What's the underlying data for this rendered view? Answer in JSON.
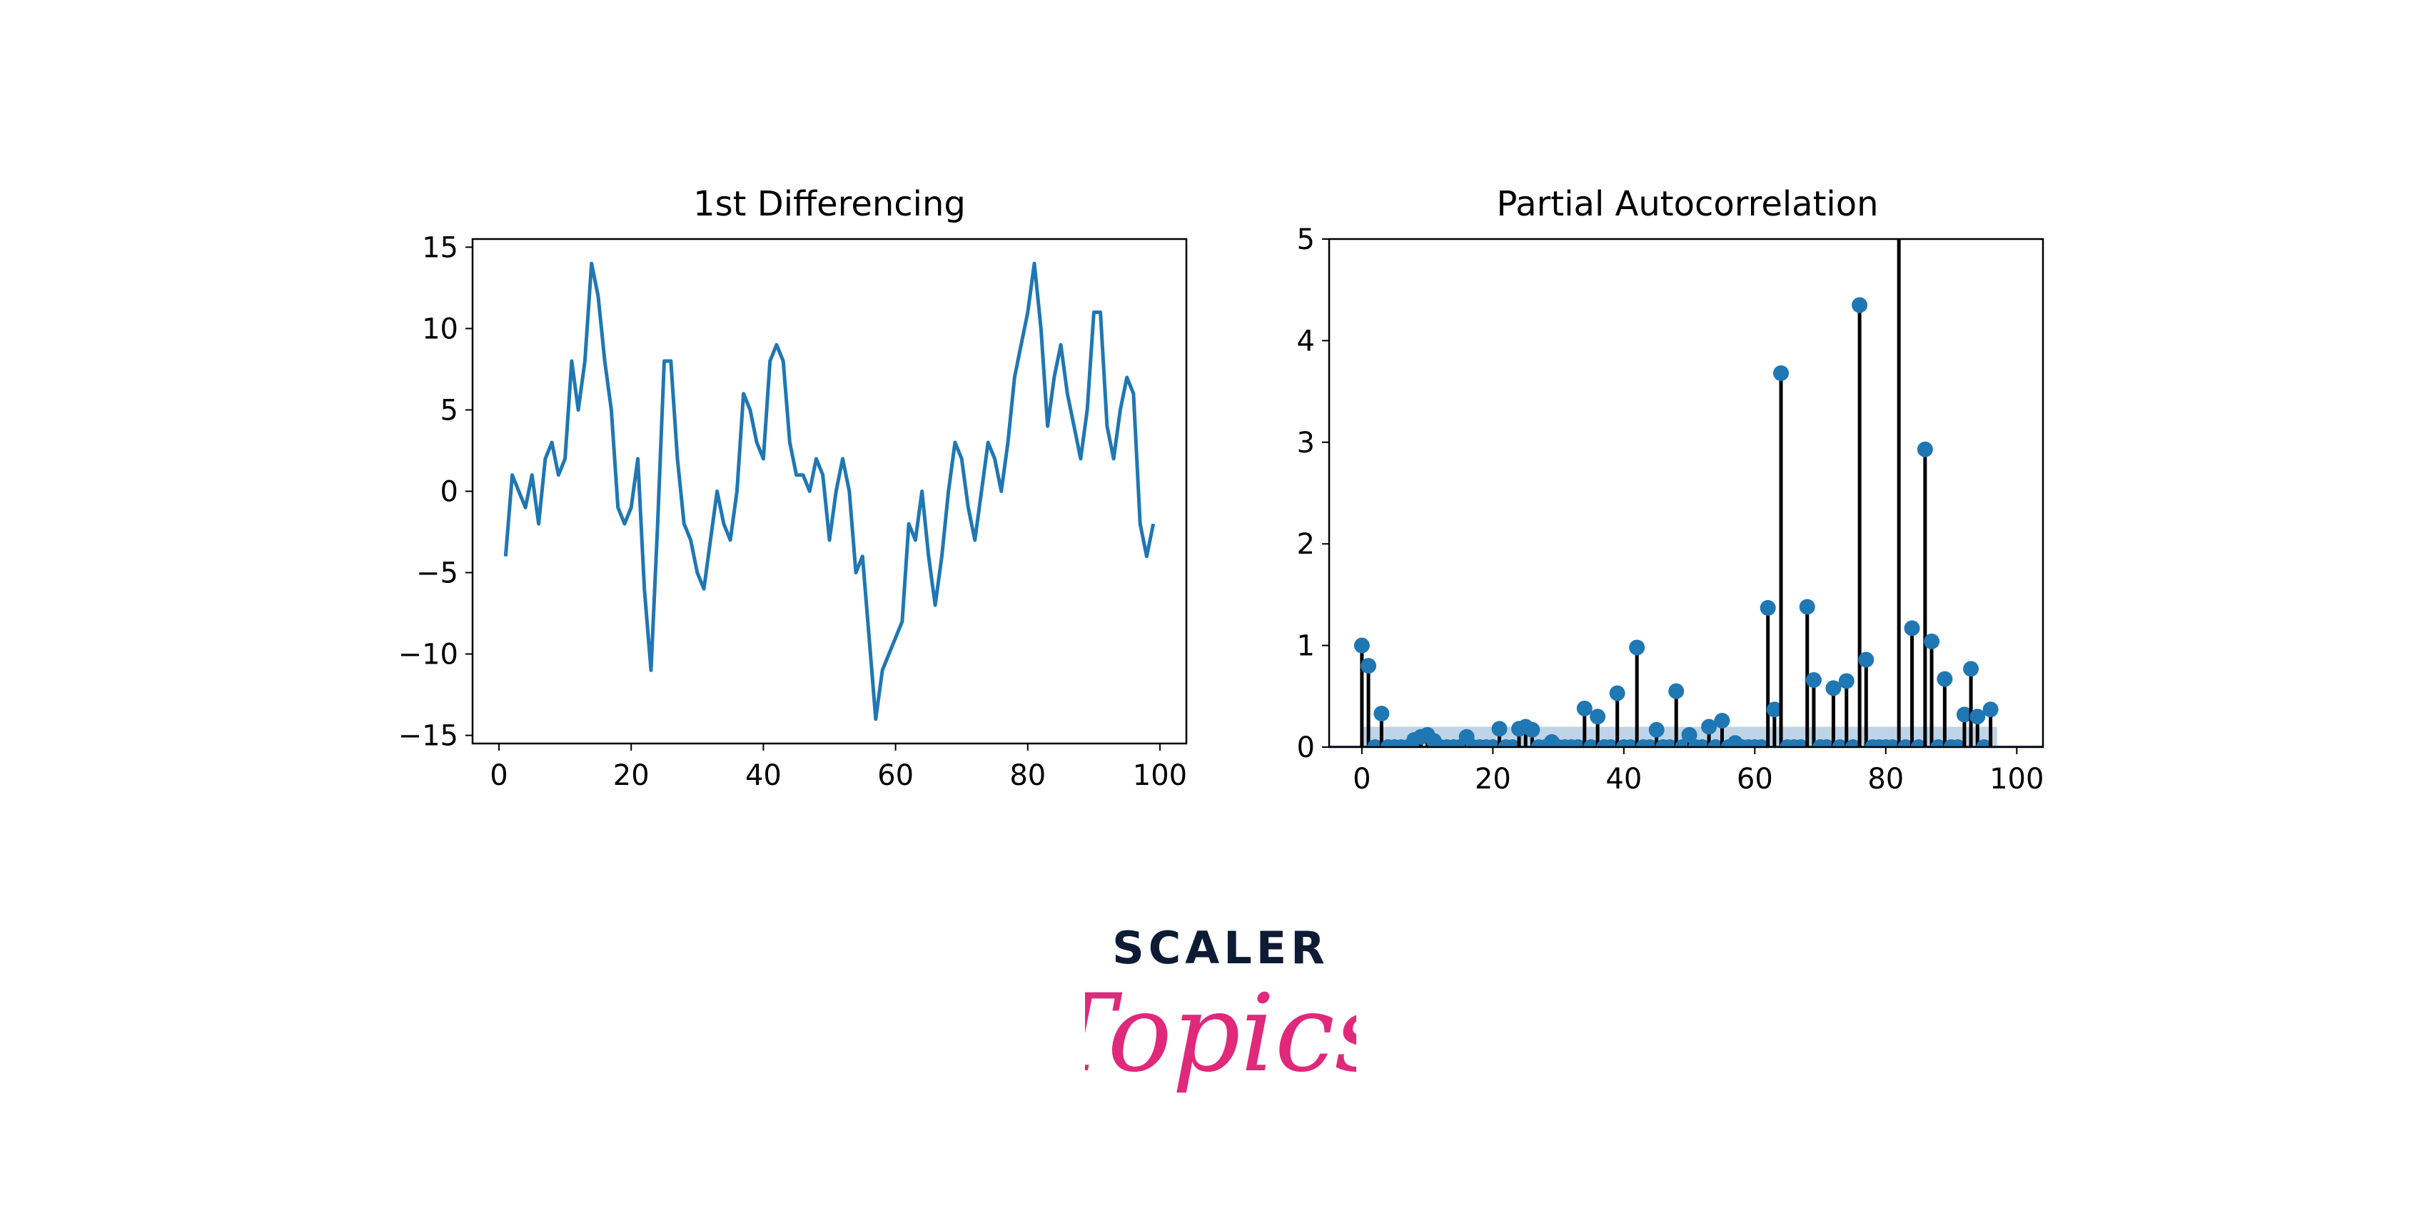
{
  "charts": [
    {
      "title": "1st Differencing",
      "color": "#1f77b4"
    },
    {
      "title": "Partial Autocorrelation",
      "color": "#1f77b4",
      "stem_color": "#000000",
      "band_color": "#a9c6df"
    }
  ],
  "chart_data": [
    {
      "type": "line",
      "title": "1st Differencing",
      "xlabel": "",
      "ylabel": "",
      "xlim": [
        -4,
        104
      ],
      "ylim": [
        -15.5,
        15.5
      ],
      "xticks": [
        0,
        20,
        40,
        60,
        80,
        100
      ],
      "yticks": [
        -15,
        -10,
        -5,
        0,
        5,
        10,
        15
      ],
      "xtick_labels": [
        "0",
        "20",
        "40",
        "60",
        "80",
        "100"
      ],
      "ytick_labels": [
        "−15",
        "−10",
        "−5",
        "0",
        "5",
        "10",
        "15"
      ],
      "grid": false,
      "series": [
        {
          "x": [
            1,
            2,
            3,
            4,
            5,
            6,
            7,
            8,
            9,
            10,
            11,
            12,
            13,
            14,
            15,
            16,
            17,
            18,
            19,
            20,
            21,
            22,
            23,
            24,
            25,
            26,
            27,
            28,
            29,
            30,
            31,
            32,
            33,
            34,
            35,
            36,
            37,
            38,
            39,
            40,
            41,
            42,
            43,
            44,
            45,
            46,
            47,
            48,
            49,
            50,
            51,
            52,
            53,
            54,
            55,
            56,
            57,
            58,
            59,
            60,
            61,
            62,
            63,
            64,
            65,
            66,
            67,
            68,
            69,
            70,
            71,
            72,
            73,
            74,
            75,
            76,
            77,
            78,
            79,
            80,
            81,
            82,
            83,
            84,
            85,
            86,
            87,
            88,
            89,
            90,
            91,
            92,
            93,
            94,
            95,
            96,
            97,
            98,
            99
          ],
          "y": [
            -4,
            1,
            0,
            -1,
            1,
            -2,
            2,
            3,
            1,
            2,
            8,
            5,
            8,
            14,
            12,
            8,
            5,
            -1,
            -2,
            -1,
            2,
            -6,
            -11,
            -2,
            8,
            8,
            2,
            -2,
            -3,
            -5,
            -6,
            -3,
            0,
            -2,
            -3,
            0,
            6,
            5,
            3,
            2,
            8,
            9,
            8,
            3,
            1,
            1,
            0,
            2,
            1,
            -3,
            0,
            2,
            0,
            -5,
            -4,
            -9,
            -14,
            -11,
            -10,
            -9,
            -8,
            -2,
            -3,
            0,
            -4,
            -7,
            -4,
            0,
            3,
            2,
            -1,
            -3,
            0,
            3,
            2,
            0,
            3,
            7,
            9,
            11,
            14,
            10,
            4,
            7,
            9,
            6,
            4,
            2,
            5,
            11,
            11,
            4,
            2,
            5,
            7,
            6,
            -2,
            -4,
            -2
          ]
        }
      ]
    },
    {
      "type": "stem",
      "title": "Partial Autocorrelation",
      "xlabel": "",
      "ylabel": "",
      "xlim": [
        -5,
        104
      ],
      "ylim": [
        0,
        5
      ],
      "xticks": [
        0,
        20,
        40,
        60,
        80,
        100
      ],
      "yticks": [
        0,
        1,
        2,
        3,
        4,
        5
      ],
      "xtick_labels": [
        "0",
        "20",
        "40",
        "60",
        "80",
        "100"
      ],
      "ytick_labels": [
        "0",
        "1",
        "2",
        "3",
        "4",
        "5"
      ],
      "grid": false,
      "confidence_band": {
        "x_from": 0,
        "x_to": 97,
        "upper": 0.2
      },
      "lags": [
        0,
        1,
        2,
        3,
        4,
        5,
        6,
        7,
        8,
        9,
        10,
        11,
        12,
        13,
        14,
        15,
        16,
        17,
        18,
        19,
        20,
        21,
        22,
        23,
        24,
        25,
        26,
        27,
        28,
        29,
        30,
        31,
        32,
        33,
        34,
        35,
        36,
        37,
        38,
        39,
        40,
        41,
        42,
        43,
        44,
        45,
        46,
        47,
        48,
        49,
        50,
        51,
        52,
        53,
        54,
        55,
        56,
        57,
        58,
        59,
        60,
        61,
        62,
        63,
        64,
        65,
        66,
        67,
        68,
        69,
        70,
        71,
        72,
        73,
        74,
        75,
        76,
        77,
        78,
        79,
        80,
        81,
        82,
        83,
        84,
        85,
        86,
        87,
        88,
        89,
        90,
        91,
        92,
        93,
        94,
        95,
        96
      ],
      "values": [
        1.0,
        0.8,
        0.0,
        0.33,
        0.0,
        0.0,
        0.0,
        0.0,
        0.07,
        0.1,
        0.12,
        0.06,
        0.0,
        0.0,
        0.0,
        0.0,
        0.1,
        0.0,
        0.0,
        0.0,
        0.0,
        0.18,
        0.0,
        0.0,
        0.18,
        0.2,
        0.17,
        0.0,
        0.0,
        0.05,
        0.0,
        0.0,
        0.0,
        0.0,
        0.38,
        0.0,
        0.3,
        0.0,
        0.0,
        0.53,
        0.0,
        0.0,
        0.98,
        0.0,
        0.0,
        0.17,
        0.0,
        0.0,
        0.55,
        0.0,
        0.12,
        0.0,
        0.0,
        0.2,
        0.0,
        0.26,
        0.0,
        0.04,
        0.0,
        0.0,
        0.0,
        0.0,
        1.37,
        0.37,
        3.68,
        0.0,
        0.0,
        0.0,
        1.38,
        0.66,
        0.0,
        0.0,
        0.58,
        0.0,
        0.65,
        0.0,
        4.35,
        0.86,
        0.0,
        0.0,
        0.0,
        0.0,
        5.3,
        0.0,
        1.17,
        0.0,
        2.93,
        1.04,
        0.0,
        0.67,
        0.0,
        0.0,
        0.32,
        0.77,
        0.3,
        0.0,
        0.37
      ]
    }
  ],
  "logo": {
    "word": "SCALER",
    "script": "Topics",
    "word_color": "#0d1b34",
    "script_color": "#e0297a"
  }
}
